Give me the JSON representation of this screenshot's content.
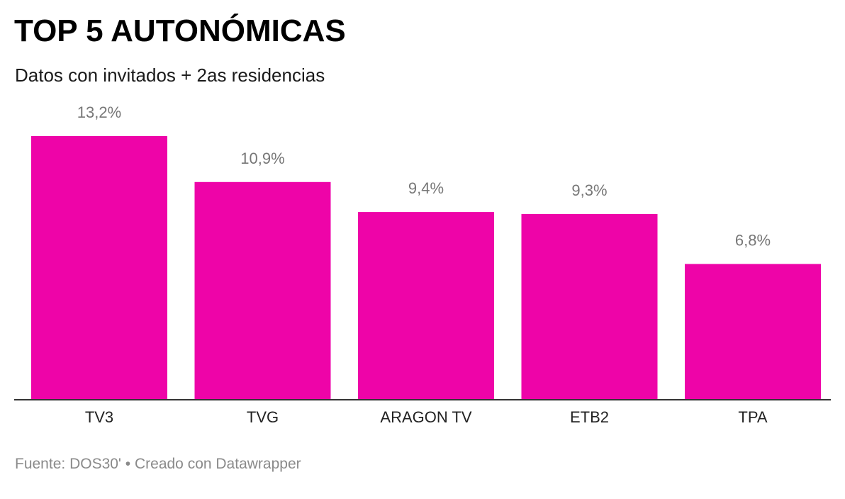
{
  "title": "TOP 5 AUTONÓMICAS",
  "subtitle": "Datos con invitados + 2as residencias",
  "footer": {
    "source_label": "Fuente:",
    "source": "DOS30'",
    "separator": "•",
    "credit": "Creado con Datawrapper"
  },
  "colors": {
    "bar": "#ee04a8",
    "value_label": "#777777",
    "axis": "#333333"
  },
  "chart_data": {
    "type": "bar",
    "title": "TOP 5 AUTONÓMICAS",
    "subtitle": "Datos con invitados + 2as residencias",
    "categories": [
      "TV3",
      "TVG",
      "ARAGON TV",
      "ETB2",
      "TPA"
    ],
    "values": [
      13.2,
      10.9,
      9.4,
      9.3,
      6.8
    ],
    "value_labels": [
      "13,2%",
      "10,9%",
      "9,4%",
      "9,3%",
      "6,8%"
    ],
    "xlabel": "",
    "ylabel": "",
    "ylim": [
      0,
      13.2
    ],
    "grid": false,
    "legend": "none"
  }
}
